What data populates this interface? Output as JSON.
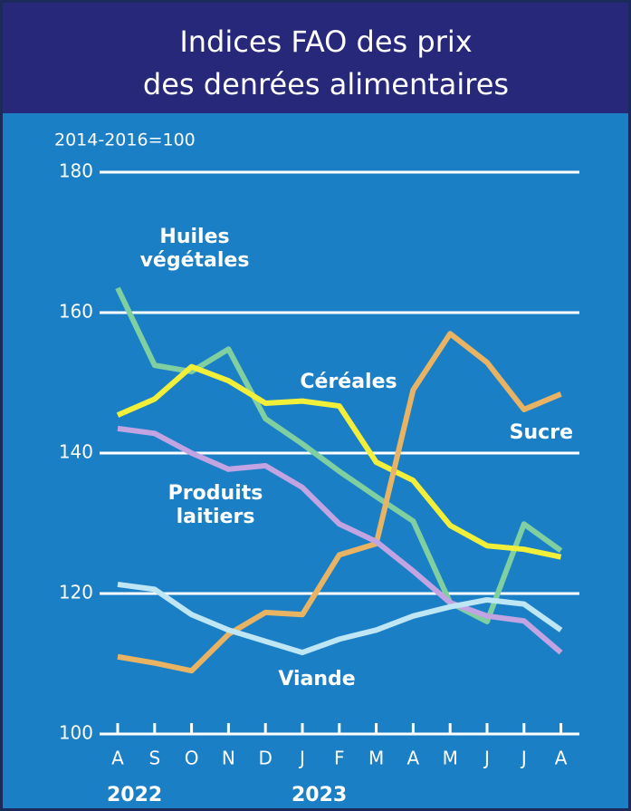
{
  "chart_data": {
    "type": "line",
    "title": [
      "Indices FAO des prix",
      "des denrées alimentaires"
    ],
    "y_label": "2014-2016=100",
    "categories": [
      "A",
      "S",
      "O",
      "N",
      "D",
      "J",
      "F",
      "M",
      "A",
      "M",
      "J",
      "J",
      "A"
    ],
    "x_groups": [
      {
        "label": "2022",
        "start": 0
      },
      {
        "label": "2023",
        "start": 5
      }
    ],
    "ylim": [
      100,
      180
    ],
    "yticks": [
      100,
      120,
      140,
      160,
      180
    ],
    "grid": true,
    "series": [
      {
        "name": "Huiles végétales",
        "color": "#7fcfa0",
        "values": [
          163.5,
          152.5,
          151.6,
          154.8,
          144.9,
          141.3,
          137.4,
          133.8,
          130.3,
          118.7,
          116,
          129.9,
          126.1
        ]
      },
      {
        "name": "Céréales",
        "color": "#f2ef3a",
        "values": [
          145.4,
          147.7,
          152.3,
          150.3,
          147.1,
          147.4,
          146.7,
          138.7,
          136.1,
          129.7,
          126.8,
          126.3,
          125.2
        ]
      },
      {
        "name": "Sucre",
        "color": "#e8b464",
        "values": [
          111,
          110.1,
          109,
          114.2,
          117.3,
          117,
          125.5,
          127.1,
          149,
          157,
          152.9,
          146.2,
          148.4
        ]
      },
      {
        "name": "Produits laitiers",
        "color": "#c3a4e2",
        "values": [
          143.5,
          142.8,
          140,
          137.7,
          138.2,
          135.1,
          129.9,
          127.4,
          123.2,
          118.7,
          116.8,
          116.1,
          111.6
        ]
      },
      {
        "name": "Viande",
        "color": "#bfe6f5",
        "values": [
          121.3,
          120.6,
          117,
          114.8,
          113.2,
          111.6,
          113.5,
          114.8,
          116.8,
          118.1,
          119.1,
          118.5,
          114.8
        ]
      }
    ]
  }
}
